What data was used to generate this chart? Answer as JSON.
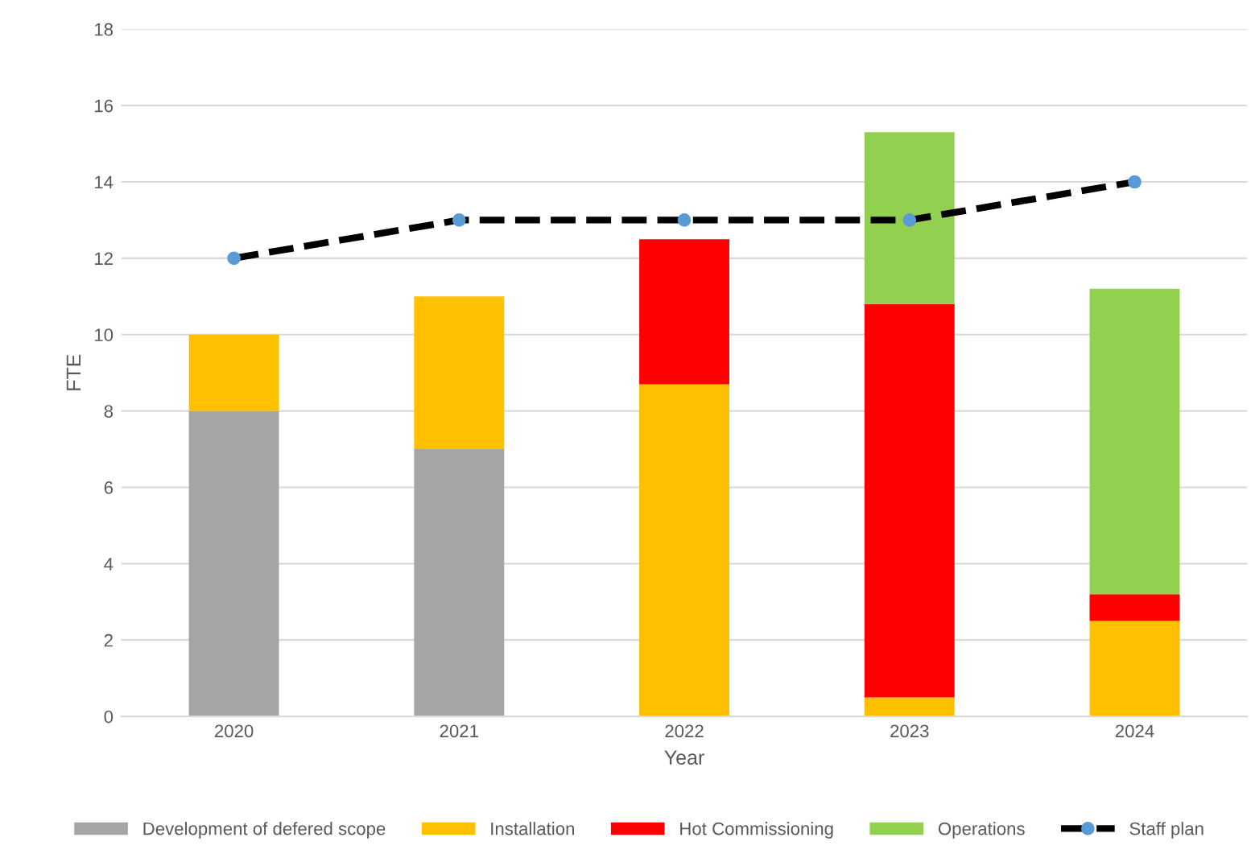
{
  "chart_data": {
    "type": "bar",
    "stacked": true,
    "xlabel": "Year",
    "ylabel": "FTE",
    "categories": [
      "2020",
      "2021",
      "2022",
      "2023",
      "2024"
    ],
    "series": [
      {
        "name": "Development of defered scope",
        "color": "#a5a5a5",
        "values": [
          8,
          7,
          0,
          0,
          0
        ]
      },
      {
        "name": "Installation",
        "color": "#ffc000",
        "values": [
          2,
          4,
          8.7,
          0.5,
          2.5
        ]
      },
      {
        "name": "Hot Commissioning",
        "color": "#ff0000",
        "values": [
          0,
          0,
          3.8,
          10.3,
          0.7
        ]
      },
      {
        "name": "Operations",
        "color": "#92d050",
        "values": [
          0,
          0,
          0,
          4.5,
          8
        ]
      },
      {
        "name": "Staff plan",
        "type": "line",
        "color": "#000000",
        "marker": "circle",
        "line_style": "dashed",
        "values": [
          12,
          13,
          13,
          13,
          14
        ]
      }
    ],
    "ylim": [
      0,
      18
    ],
    "yticks": [
      0,
      2,
      4,
      6,
      8,
      10,
      12,
      14,
      16,
      18
    ],
    "grid": "y",
    "legend": "bottom"
  }
}
